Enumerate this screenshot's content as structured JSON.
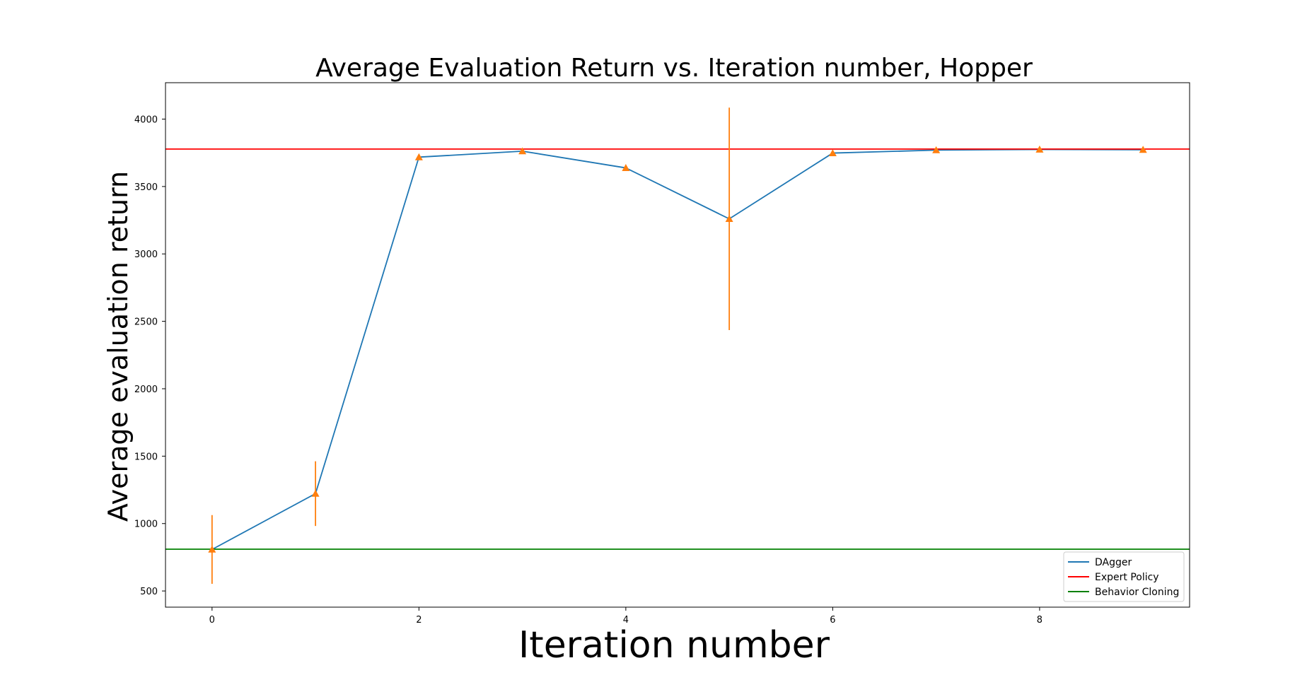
{
  "chart_data": {
    "type": "line",
    "title": "Average Evaluation Return vs. Iteration number, Hopper",
    "xlabel": "Iteration number",
    "ylabel": "Average evaluation return",
    "xlim": [
      -0.45,
      9.45
    ],
    "ylim": [
      380,
      4270
    ],
    "xticks": [
      0,
      2,
      4,
      6,
      8
    ],
    "yticks": [
      500,
      1000,
      1500,
      2000,
      2500,
      3000,
      3500,
      4000
    ],
    "grid": false,
    "legend_position": "lower-right",
    "series": [
      {
        "name": "DAgger",
        "type": "line-errorbar",
        "color": "#1f77b4",
        "marker_color": "#ff7f0e",
        "marker": "triangle",
        "x": [
          0,
          1,
          2,
          3,
          4,
          5,
          6,
          7,
          8,
          9
        ],
        "y": [
          808,
          1222,
          3718,
          3762,
          3638,
          3260,
          3748,
          3770,
          3775,
          3773
        ],
        "yerr": [
          255,
          240,
          0,
          0,
          0,
          825,
          0,
          0,
          0,
          0
        ]
      },
      {
        "name": "Expert Policy",
        "type": "hline",
        "color": "#ff0000",
        "y": 3778
      },
      {
        "name": "Behavior Cloning",
        "type": "hline",
        "color": "#008000",
        "y": 810
      }
    ]
  }
}
